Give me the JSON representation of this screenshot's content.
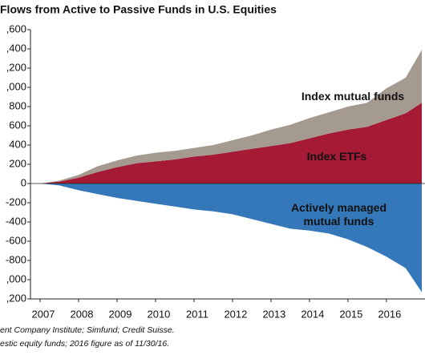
{
  "chart_data": {
    "type": "stacked-area",
    "title": "Flows from Active to Passive Funds in U.S. Equities",
    "x": [
      2007,
      2007.5,
      2008,
      2008.5,
      2009,
      2009.5,
      2010,
      2010.5,
      2011,
      2011.5,
      2012,
      2012.5,
      2013,
      2013.5,
      2014,
      2014.5,
      2015,
      2015.5,
      2016,
      2016.5,
      2016.92
    ],
    "series": [
      {
        "name": "Index ETFs",
        "color": "#a51b35",
        "values": [
          0,
          20,
          60,
          120,
          170,
          210,
          230,
          250,
          280,
          300,
          330,
          360,
          390,
          420,
          470,
          520,
          560,
          590,
          660,
          730,
          840
        ]
      },
      {
        "name": "Index mutual funds",
        "color": "#a59a90",
        "values": [
          0,
          10,
          30,
          60,
          70,
          80,
          90,
          90,
          90,
          100,
          120,
          140,
          170,
          190,
          210,
          220,
          240,
          250,
          330,
          370,
          550
        ]
      },
      {
        "name": "Actively managed mutual funds",
        "color": "#3478ba",
        "values": [
          0,
          -20,
          -70,
          -110,
          -150,
          -180,
          -210,
          -240,
          -270,
          -290,
          -320,
          -370,
          -420,
          -470,
          -490,
          -520,
          -580,
          -660,
          -760,
          -880,
          -1130
        ]
      }
    ],
    "xlim": [
      2007,
      2016.92
    ],
    "xticks": [
      2007,
      2008,
      2009,
      2010,
      2011,
      2012,
      2013,
      2014,
      2015,
      2016
    ],
    "ylim": [
      -1200,
      1600
    ],
    "yticks": [
      {
        "value": 1600,
        "label": ",600"
      },
      {
        "value": 1400,
        "label": ",400"
      },
      {
        "value": 1200,
        "label": ",200"
      },
      {
        "value": 1000,
        "label": ",000"
      },
      800,
      600,
      400,
      200,
      0,
      -200,
      -400,
      -600,
      -800,
      {
        "value": -1000,
        "label": ",000"
      },
      {
        "value": -1200,
        "label": ",200"
      }
    ],
    "notes": [
      "ent Company Institute; Simfund; Credit Suisse.",
      "estic equity funds; 2016 figure as of 11/30/16."
    ]
  }
}
